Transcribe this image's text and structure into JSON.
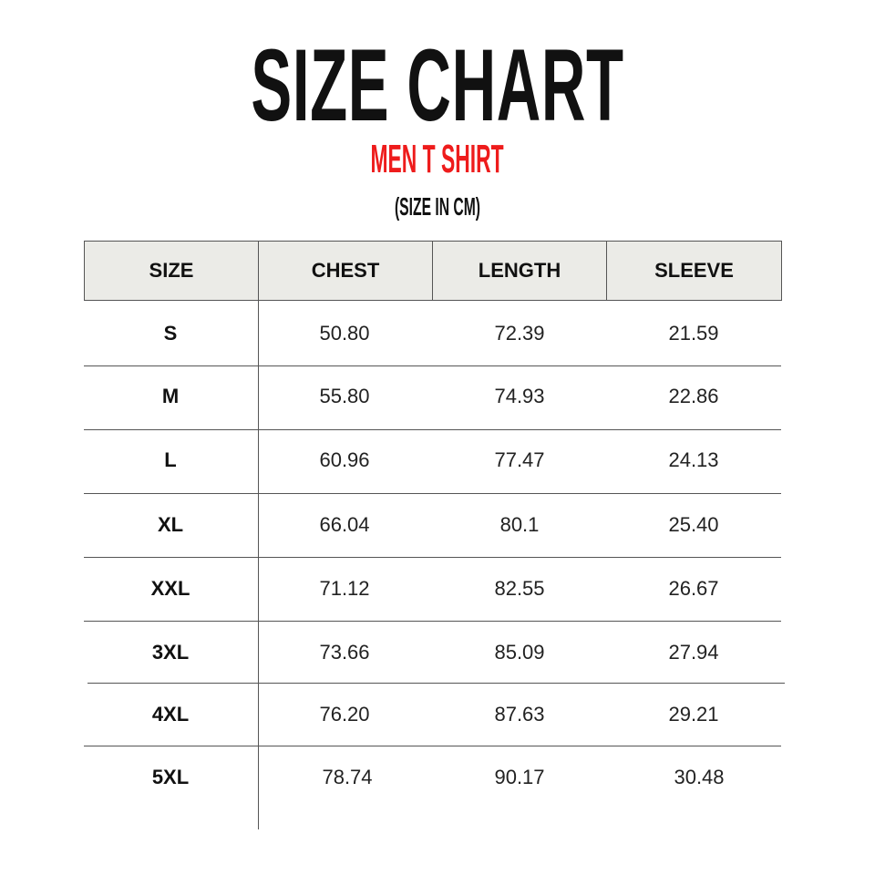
{
  "title": "SIZE CHART",
  "subtitle": "MEN T SHIRT",
  "unit_note": "(SIZE IN CM)",
  "colors": {
    "title": "#111111",
    "subtitle": "#ee1c1c",
    "header_bg": "#ebebe7"
  },
  "table": {
    "headers": [
      "SIZE",
      "CHEST",
      "LENGTH",
      "SLEEVE"
    ],
    "rows": [
      [
        "S",
        "50.80",
        "72.39",
        "21.59"
      ],
      [
        "M",
        "55.80",
        "74.93",
        "22.86"
      ],
      [
        "L",
        "60.96",
        "77.47",
        "24.13"
      ],
      [
        "XL",
        "66.04",
        "80.1",
        "25.40"
      ],
      [
        "XXL",
        "71.12",
        "82.55",
        "26.67"
      ],
      [
        "3XL",
        "73.66",
        "85.09",
        "27.94"
      ],
      [
        "4XL",
        "76.20",
        "87.63",
        "29.21"
      ],
      [
        "5XL",
        "78.74",
        "90.17",
        "30.48"
      ]
    ]
  }
}
